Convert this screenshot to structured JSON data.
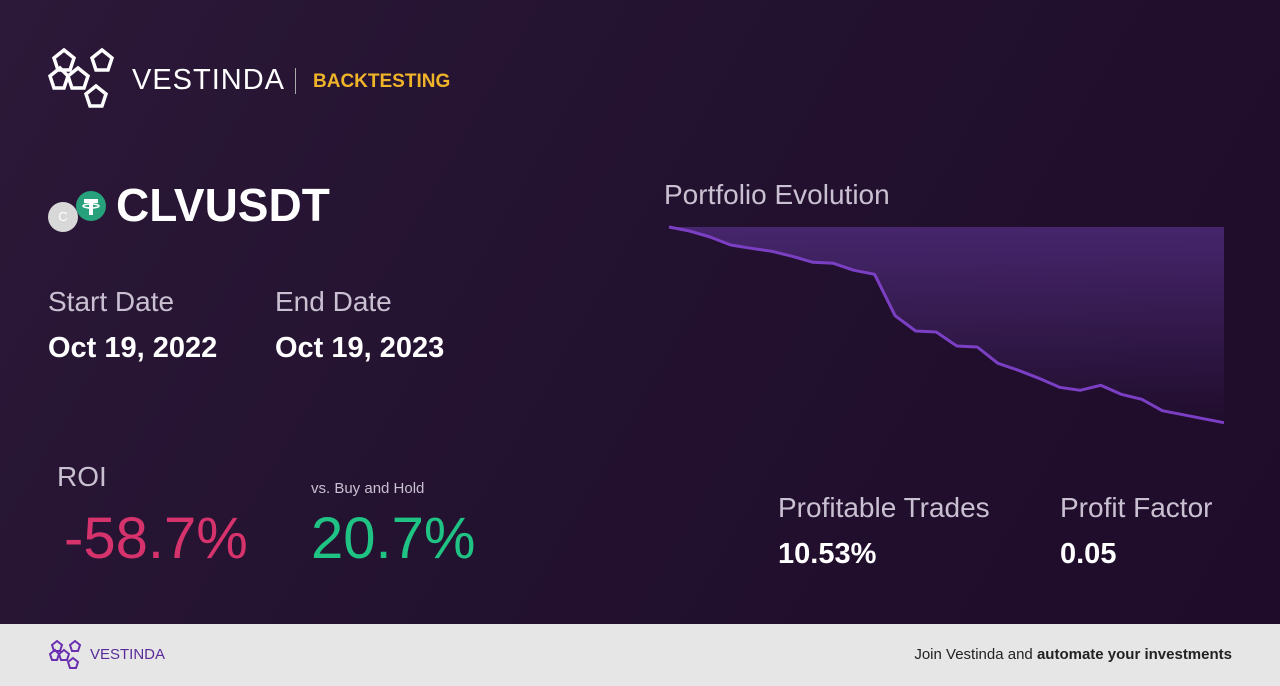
{
  "header": {
    "brand": "VESTINDA",
    "section": "BACKTESTING"
  },
  "pair": {
    "icon_letter": "C",
    "symbol": "CLVUSDT"
  },
  "dates": {
    "start_label": "Start Date",
    "start_value": "Oct 19, 2022",
    "end_label": "End Date",
    "end_value": "Oct 19, 2023"
  },
  "roi": {
    "label": "ROI",
    "value": "-58.7%",
    "vs_label": "vs. Buy and Hold",
    "vs_value": "20.7%"
  },
  "stats": {
    "trades_label": "Profitable Trades",
    "trades_value": "10.53%",
    "factor_label": "Profit Factor",
    "factor_value": "0.05"
  },
  "footer": {
    "brand": "VESTINDA",
    "text": "Join Vestinda and",
    "bold": "automate your investments"
  },
  "chart_data": {
    "type": "area",
    "title": "Portfolio Evolution",
    "color": "#7b3fc4",
    "values": [
      0,
      -1.2,
      -3.0,
      -5.4,
      -6.4,
      -7.3,
      -8.8,
      -10.6,
      -10.9,
      -13.0,
      -14.2,
      -26.6,
      -31.2,
      -31.5,
      -35.7,
      -36.0,
      -40.9,
      -43.0,
      -45.4,
      -48.1,
      -49.0,
      -47.5,
      -50.2,
      -51.7,
      -55.1,
      -56.3,
      -57.5,
      -58.7
    ],
    "ylim": [
      -60,
      0
    ]
  }
}
